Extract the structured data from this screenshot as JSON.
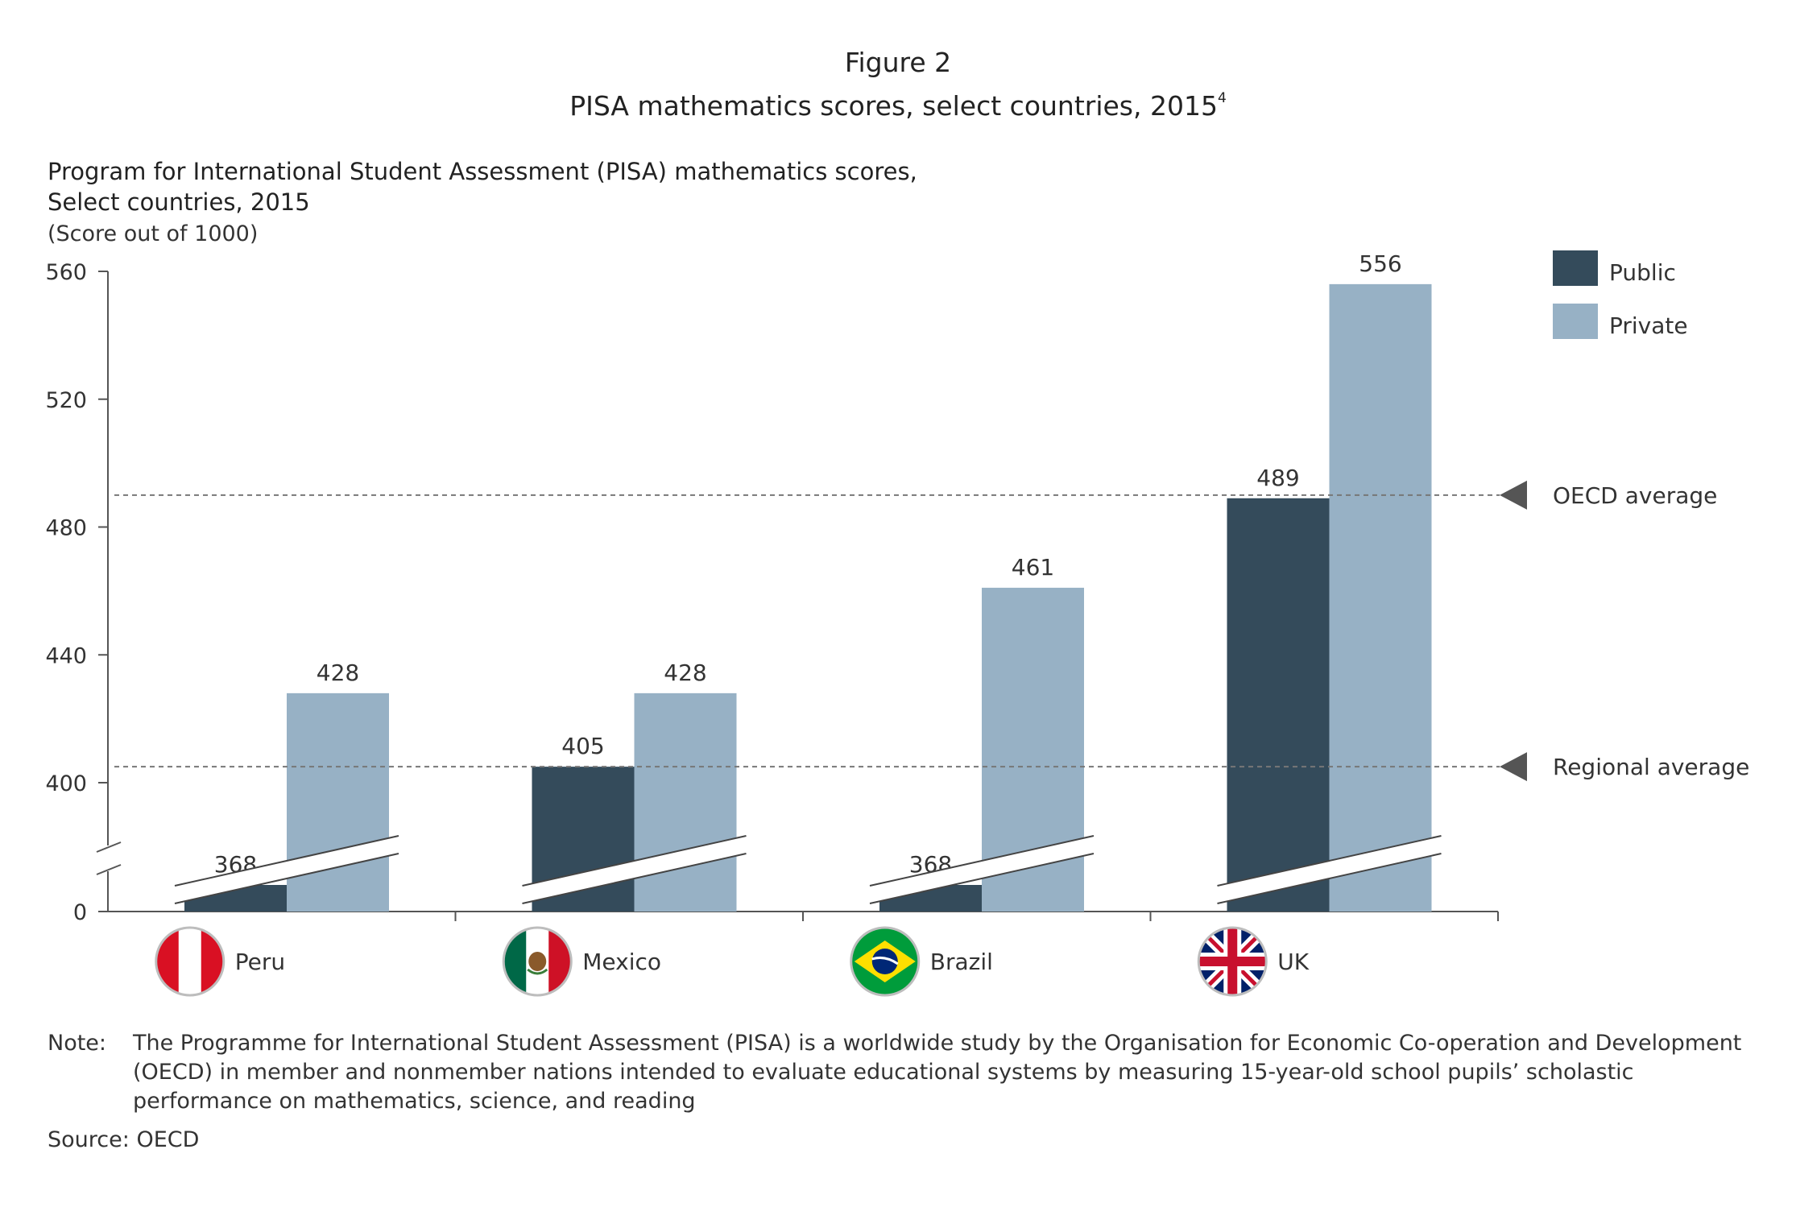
{
  "header": {
    "figure_label": "Figure 2",
    "title": "PISA mathematics scores, select countries, 2015",
    "title_footnote": "4"
  },
  "chart_data": {
    "type": "bar",
    "title": "Program for International Student Assessment (PISA) mathematics scores,",
    "title_line2": "Select countries, 2015",
    "unit": "(Score out of 1000)",
    "categories": [
      "Peru",
      "Mexico",
      "Brazil",
      "UK"
    ],
    "series": [
      {
        "name": "Public",
        "color": "#344b5b",
        "values": [
          368,
          405,
          368,
          489
        ]
      },
      {
        "name": "Private",
        "color": "#97b1c5",
        "values": [
          428,
          428,
          461,
          556
        ]
      }
    ],
    "y_ticks": [
      0,
      400,
      440,
      480,
      520,
      560
    ],
    "ylim": [
      0,
      560
    ],
    "axis_break": true,
    "reference_lines": [
      {
        "label": "OECD average",
        "value": 490
      },
      {
        "label": "Regional average",
        "value": 405
      }
    ],
    "category_icons": [
      "peru-flag-icon",
      "mexico-flag-icon",
      "brazil-flag-icon",
      "uk-flag-icon"
    ],
    "legend_position": "top-right",
    "grid": false
  },
  "footer": {
    "note_label": "Note:",
    "note_text": "The Programme for International Student Assessment (PISA) is a worldwide study by the Organisation for Economic Co-operation and Development (OECD) in member and nonmember nations intended to evaluate educational systems by measuring 15-year-old school pupils’ scholastic performance on mathematics, science, and reading",
    "source_label": "Source:",
    "source_text": "OECD"
  }
}
